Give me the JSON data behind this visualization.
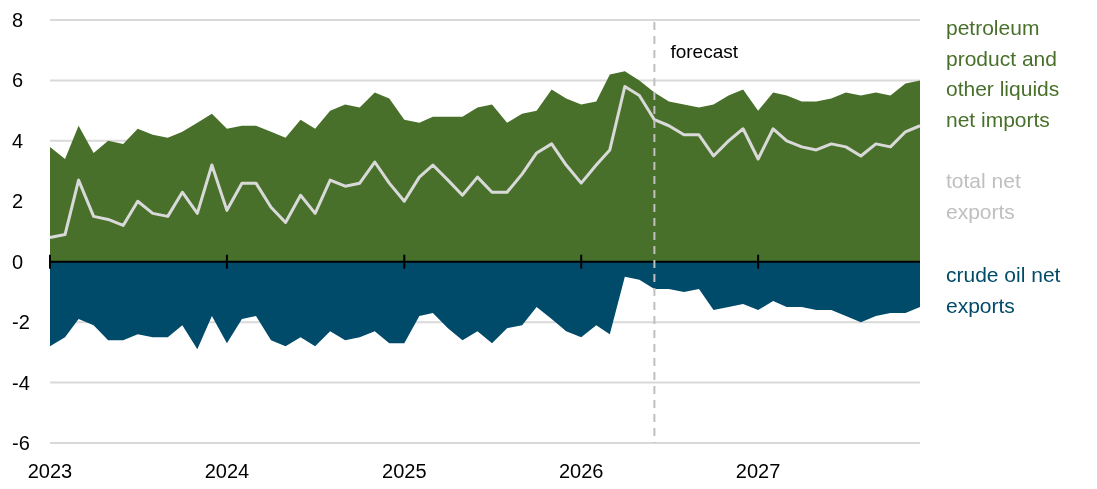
{
  "chart_data": {
    "type": "area",
    "x": [
      "2023-01",
      "2023-02",
      "2023-03",
      "2023-04",
      "2023-05",
      "2023-06",
      "2023-07",
      "2023-08",
      "2023-09",
      "2023-10",
      "2023-11",
      "2023-12",
      "2024-01",
      "2024-02",
      "2024-03",
      "2024-04",
      "2024-05",
      "2024-06",
      "2024-07",
      "2024-08",
      "2024-09",
      "2024-10",
      "2024-11",
      "2024-12",
      "2025-01",
      "2025-02",
      "2025-03",
      "2025-04",
      "2025-05",
      "2025-06",
      "2025-07",
      "2025-08",
      "2025-09",
      "2025-10",
      "2025-11",
      "2025-12",
      "2026-01",
      "2026-02",
      "2026-03",
      "2026-04",
      "2026-05",
      "2026-06",
      "2026-07",
      "2026-08",
      "2026-09",
      "2026-10",
      "2026-11",
      "2026-12",
      "2027-01",
      "2027-02",
      "2027-03",
      "2027-04",
      "2027-05",
      "2027-06",
      "2027-07",
      "2027-08",
      "2027-09",
      "2027-10",
      "2027-11",
      "2027-12"
    ],
    "series": [
      {
        "name": "petroleum product and other liquids net imports",
        "color": "#48702a",
        "values": [
          3.8,
          3.4,
          4.5,
          3.6,
          4.0,
          3.9,
          4.4,
          4.2,
          4.1,
          4.3,
          4.6,
          4.9,
          4.4,
          4.5,
          4.5,
          4.3,
          4.1,
          4.7,
          4.4,
          5.0,
          5.2,
          5.1,
          5.6,
          5.4,
          4.7,
          4.6,
          4.8,
          4.8,
          4.8,
          5.1,
          5.2,
          4.6,
          4.9,
          5.0,
          5.7,
          5.4,
          5.2,
          5.3,
          6.2,
          6.3,
          6.0,
          5.6,
          5.3,
          5.2,
          5.1,
          5.2,
          5.5,
          5.7,
          5.0,
          5.6,
          5.5,
          5.3,
          5.3,
          5.4,
          5.6,
          5.5,
          5.6,
          5.5,
          5.9,
          6.0
        ]
      },
      {
        "name": "crude oil net exports",
        "color": "#004a6a",
        "values": [
          -2.8,
          -2.5,
          -1.9,
          -2.1,
          -2.6,
          -2.6,
          -2.4,
          -2.5,
          -2.5,
          -2.1,
          -2.9,
          -1.8,
          -2.7,
          -1.9,
          -1.8,
          -2.6,
          -2.8,
          -2.5,
          -2.8,
          -2.3,
          -2.6,
          -2.5,
          -2.3,
          -2.7,
          -2.7,
          -1.8,
          -1.7,
          -2.2,
          -2.6,
          -2.3,
          -2.7,
          -2.2,
          -2.1,
          -1.5,
          -1.9,
          -2.3,
          -2.5,
          -2.1,
          -2.4,
          -0.5,
          -0.6,
          -0.9,
          -0.9,
          -1.0,
          -0.9,
          -1.6,
          -1.5,
          -1.4,
          -1.6,
          -1.3,
          -1.5,
          -1.5,
          -1.6,
          -1.6,
          -1.8,
          -2.0,
          -1.8,
          -1.7,
          -1.7,
          -1.5
        ]
      },
      {
        "name": "total net exports",
        "type": "line",
        "color": "#d9d9d9",
        "values": [
          0.8,
          0.9,
          2.7,
          1.5,
          1.4,
          1.2,
          2.0,
          1.6,
          1.5,
          2.3,
          1.6,
          3.2,
          1.7,
          2.6,
          2.6,
          1.8,
          1.3,
          2.2,
          1.6,
          2.7,
          2.5,
          2.6,
          3.3,
          2.6,
          2.0,
          2.8,
          3.2,
          2.7,
          2.2,
          2.8,
          2.3,
          2.3,
          2.9,
          3.6,
          3.9,
          3.2,
          2.6,
          3.2,
          3.7,
          5.8,
          5.5,
          4.7,
          4.5,
          4.2,
          4.2,
          3.5,
          4.0,
          4.4,
          3.4,
          4.4,
          4.0,
          3.8,
          3.7,
          3.9,
          3.8,
          3.5,
          3.9,
          3.8,
          4.3,
          4.5
        ]
      }
    ],
    "xlim": [
      "2023-01",
      "2027-12"
    ],
    "xticks": [
      {
        "value": "2023-01",
        "label": "2023"
      },
      {
        "value": "2024-01",
        "label": "2024"
      },
      {
        "value": "2025-01",
        "label": "2025"
      },
      {
        "value": "2026-01",
        "label": "2026"
      },
      {
        "value": "2027-01",
        "label": "2027"
      }
    ],
    "ylim": [
      -6,
      8
    ],
    "yticks": [
      -6,
      -4,
      -2,
      0,
      2,
      4,
      6,
      8
    ],
    "ref_lines": [
      {
        "axis": "x",
        "value": "2026-06",
        "label": "forecast",
        "color": "#bfbfbf",
        "line_style": "dashed"
      }
    ],
    "grid": "y",
    "legend": "right",
    "line_style": "solid",
    "marker": "none"
  }
}
